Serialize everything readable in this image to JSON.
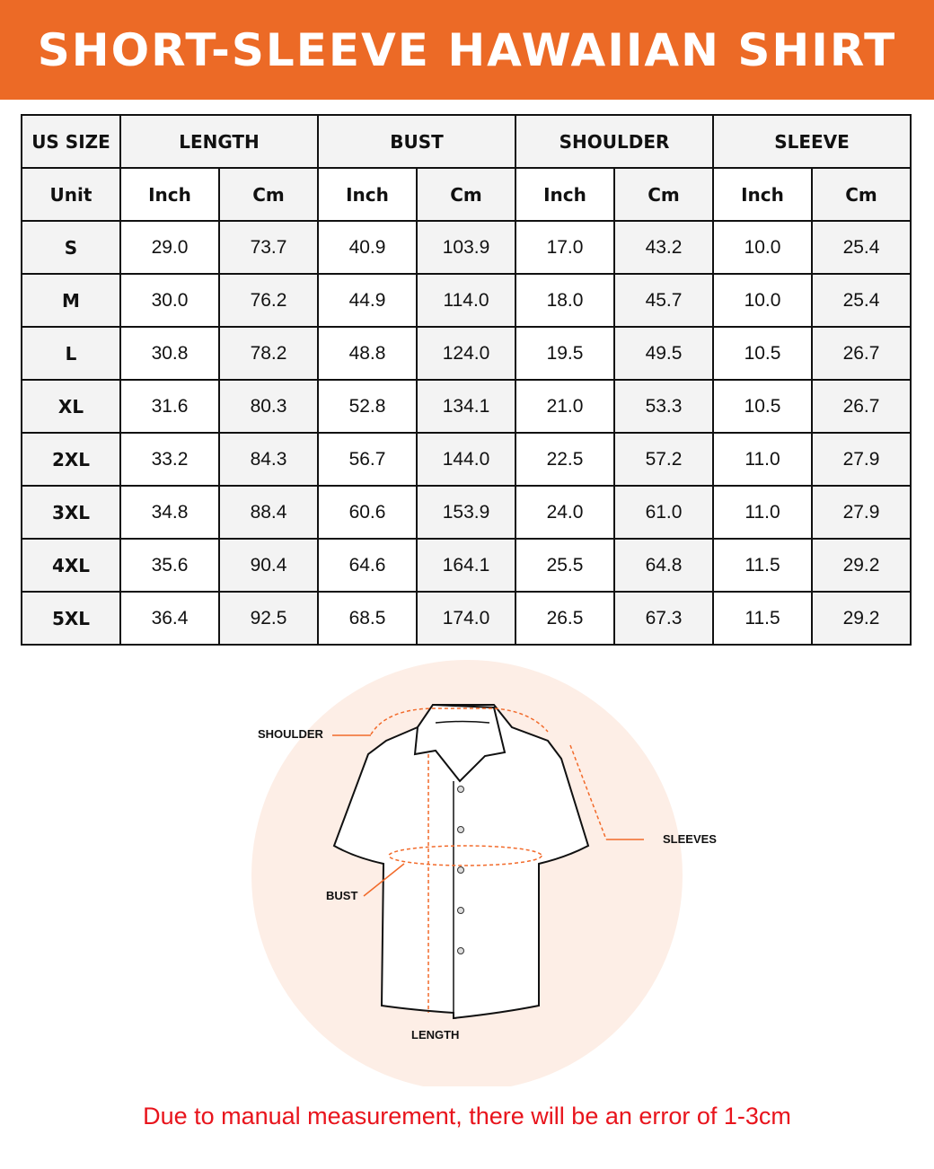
{
  "title": "SHORT-SLEEVE HAWAIIAN SHIRT",
  "table": {
    "size_header": "US SIZE",
    "groups": [
      "LENGTH",
      "BUST",
      "SHOULDER",
      "SLEEVE"
    ],
    "unit_label": "Unit",
    "units": [
      "Inch",
      "Cm",
      "Inch",
      "Cm",
      "Inch",
      "Cm",
      "Inch",
      "Cm"
    ],
    "rows": [
      {
        "size": "S",
        "values": [
          "29.0",
          "73.7",
          "40.9",
          "103.9",
          "17.0",
          "43.2",
          "10.0",
          "25.4"
        ]
      },
      {
        "size": "M",
        "values": [
          "30.0",
          "76.2",
          "44.9",
          "114.0",
          "18.0",
          "45.7",
          "10.0",
          "25.4"
        ]
      },
      {
        "size": "L",
        "values": [
          "30.8",
          "78.2",
          "48.8",
          "124.0",
          "19.5",
          "49.5",
          "10.5",
          "26.7"
        ]
      },
      {
        "size": "XL",
        "values": [
          "31.6",
          "80.3",
          "52.8",
          "134.1",
          "21.0",
          "53.3",
          "10.5",
          "26.7"
        ]
      },
      {
        "size": "2XL",
        "values": [
          "33.2",
          "84.3",
          "56.7",
          "144.0",
          "22.5",
          "57.2",
          "11.0",
          "27.9"
        ]
      },
      {
        "size": "3XL",
        "values": [
          "34.8",
          "88.4",
          "60.6",
          "153.9",
          "24.0",
          "61.0",
          "11.0",
          "27.9"
        ]
      },
      {
        "size": "4XL",
        "values": [
          "35.6",
          "90.4",
          "64.6",
          "164.1",
          "25.5",
          "64.8",
          "11.5",
          "29.2"
        ]
      },
      {
        "size": "5XL",
        "values": [
          "36.4",
          "92.5",
          "68.5",
          "174.0",
          "26.5",
          "67.3",
          "11.5",
          "29.2"
        ]
      }
    ]
  },
  "diagram": {
    "labels": {
      "shoulder": "SHOULDER",
      "sleeves": "SLEEVES",
      "bust": "BUST",
      "length": "LENGTH"
    }
  },
  "note": "Due to manual measurement, there will be an error of 1-3cm",
  "colors": {
    "accent": "#ec6a26",
    "note": "#e8141c",
    "circle": "#fdeee6"
  }
}
